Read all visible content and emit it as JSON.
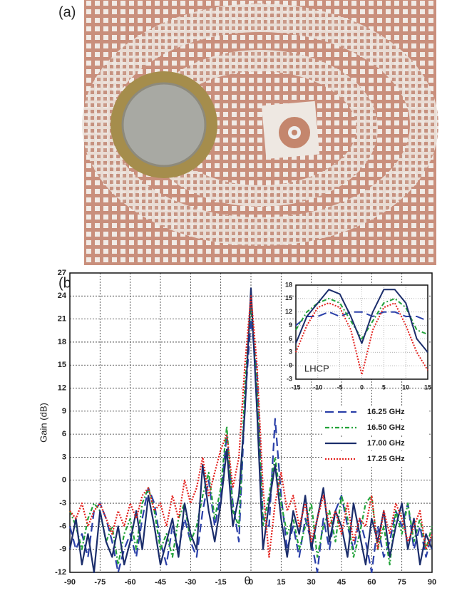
{
  "panel_labels": [
    "(a)",
    "(b)"
  ],
  "chart_data": [
    {
      "type": "line",
      "xlabel": "θ",
      "ylabel": "Gain (dB)",
      "x": [
        -90,
        -87,
        -84,
        -81,
        -78,
        -75,
        -72,
        -69,
        -66,
        -63,
        -60,
        -57,
        -54,
        -51,
        -48,
        -45,
        -42,
        -39,
        -36,
        -33,
        -30,
        -27,
        -24,
        -21,
        -18,
        -15,
        -12,
        -9,
        -6,
        -3,
        0,
        3,
        6,
        9,
        12,
        15,
        18,
        21,
        24,
        27,
        30,
        33,
        36,
        39,
        42,
        45,
        48,
        51,
        54,
        57,
        60,
        63,
        66,
        69,
        72,
        75,
        78,
        81,
        84,
        87,
        90
      ],
      "xlim": [
        -90,
        90
      ],
      "xticks": [
        -90,
        -75,
        -60,
        -45,
        -30,
        -15,
        0,
        15,
        30,
        45,
        60,
        75,
        90
      ],
      "ylim": [
        -12,
        27
      ],
      "yticks": [
        -12,
        -9,
        -6,
        -3,
        0,
        3,
        6,
        9,
        12,
        15,
        18,
        21,
        24,
        27
      ],
      "grid": true,
      "series": [
        {
          "name": "16.25 GHz",
          "color": "#2a3fa8",
          "line_style": "dashed",
          "values": [
            -6,
            -9,
            -7,
            -10,
            -4,
            -3,
            -5,
            -8,
            -12,
            -9,
            -7,
            -10,
            -5,
            -1,
            -3,
            -8,
            -11,
            -6,
            -9,
            -5,
            -8,
            -10,
            -4,
            0,
            -6,
            -2,
            6,
            -3,
            -8,
            10,
            21,
            14,
            -5,
            -6,
            8,
            -2,
            -9,
            -6,
            -10,
            -5,
            -8,
            -12,
            -5,
            -9,
            -4,
            -2,
            -6,
            -9,
            -5,
            -8,
            -12,
            -6,
            -10,
            -8,
            -4,
            -6,
            -3,
            -9,
            -6,
            -10,
            -7
          ]
        },
        {
          "name": "16.50 GHz",
          "color": "#23a33a",
          "line_style": "dashdot",
          "values": [
            -4,
            -6,
            -9,
            -5,
            -3,
            -4,
            -8,
            -6,
            -11,
            -7,
            -5,
            -9,
            -3,
            -1,
            -4,
            -9,
            -7,
            -10,
            -5,
            -3,
            -8,
            -6,
            -2,
            1,
            -5,
            -1,
            7,
            -4,
            -6,
            12,
            23,
            12,
            -6,
            -2,
            3,
            -3,
            -7,
            -5,
            -9,
            -6,
            -3,
            -10,
            -6,
            -4,
            -8,
            -2,
            -5,
            -10,
            -7,
            -3,
            -2,
            -9,
            -6,
            -11,
            -4,
            -7,
            -3,
            -8,
            -5,
            -9,
            -6
          ]
        },
        {
          "name": "17.00 GHz",
          "color": "#1b2d6b",
          "line_style": "solid",
          "values": [
            -9,
            -5,
            -11,
            -7,
            -12,
            -4,
            -8,
            -10,
            -6,
            -11,
            -8,
            -4,
            -9,
            -2,
            -6,
            -11,
            -8,
            -5,
            -10,
            -3,
            -7,
            -9,
            2,
            -4,
            -8,
            -3,
            4,
            -6,
            -2,
            9,
            25,
            9,
            -9,
            -3,
            2,
            -5,
            -10,
            -4,
            -7,
            -2,
            -9,
            -5,
            -1,
            -8,
            -4,
            -6,
            -10,
            -3,
            -7,
            -11,
            -5,
            -8,
            -4,
            -10,
            -6,
            -3,
            -9,
            -5,
            -11,
            -7,
            -9
          ]
        },
        {
          "name": "17.25 GHz",
          "color": "#e3231f",
          "line_style": "dotted",
          "values": [
            -4,
            -5,
            -3,
            -6,
            -4,
            -3,
            -5,
            -7,
            -4,
            -6,
            -3,
            -5,
            -2,
            -1,
            -4,
            -3,
            -6,
            -2,
            -5,
            0,
            -3,
            -1,
            3,
            -2,
            1,
            4,
            6,
            -1,
            3,
            15,
            24,
            15,
            -1,
            -10,
            -3,
            1,
            -4,
            -2,
            -6,
            -3,
            -8,
            -5,
            -2,
            -6,
            -4,
            -7,
            -3,
            -8,
            -5,
            -6,
            -2,
            -9,
            -4,
            -7,
            -3,
            -5,
            -8,
            -6,
            -4,
            -9,
            -7
          ]
        }
      ]
    },
    {
      "type": "line",
      "annotation": "LHCP",
      "x": [
        -15,
        -12.5,
        -10,
        -7.5,
        -5,
        -2.5,
        0,
        2.5,
        5,
        7.5,
        10,
        12.5,
        15
      ],
      "xlim": [
        -15,
        15
      ],
      "xticks": [
        -15,
        -10,
        -5,
        0,
        5,
        10,
        15
      ],
      "ylim": [
        -3,
        18
      ],
      "yticks": [
        -3,
        0,
        3,
        6,
        9,
        12,
        15,
        18
      ],
      "grid": true,
      "series": [
        {
          "color": "#2a3fa8",
          "line_style": "dashed",
          "values": [
            9,
            11,
            11,
            12,
            11,
            12,
            12,
            11,
            12,
            12,
            11,
            11,
            10
          ]
        },
        {
          "color": "#23a33a",
          "line_style": "dashdot",
          "values": [
            8,
            12,
            14,
            15,
            14,
            10,
            6,
            10,
            14,
            15,
            13,
            8,
            7
          ]
        },
        {
          "color": "#1b2d6b",
          "line_style": "solid",
          "values": [
            5,
            11,
            14,
            17,
            16,
            11,
            5,
            12,
            17,
            17,
            14,
            6,
            3
          ]
        },
        {
          "color": "#e3231f",
          "line_style": "dotted",
          "values": [
            3,
            9,
            13,
            14,
            13,
            8,
            -2,
            8,
            13,
            14,
            9,
            3,
            -1
          ]
        }
      ]
    }
  ]
}
